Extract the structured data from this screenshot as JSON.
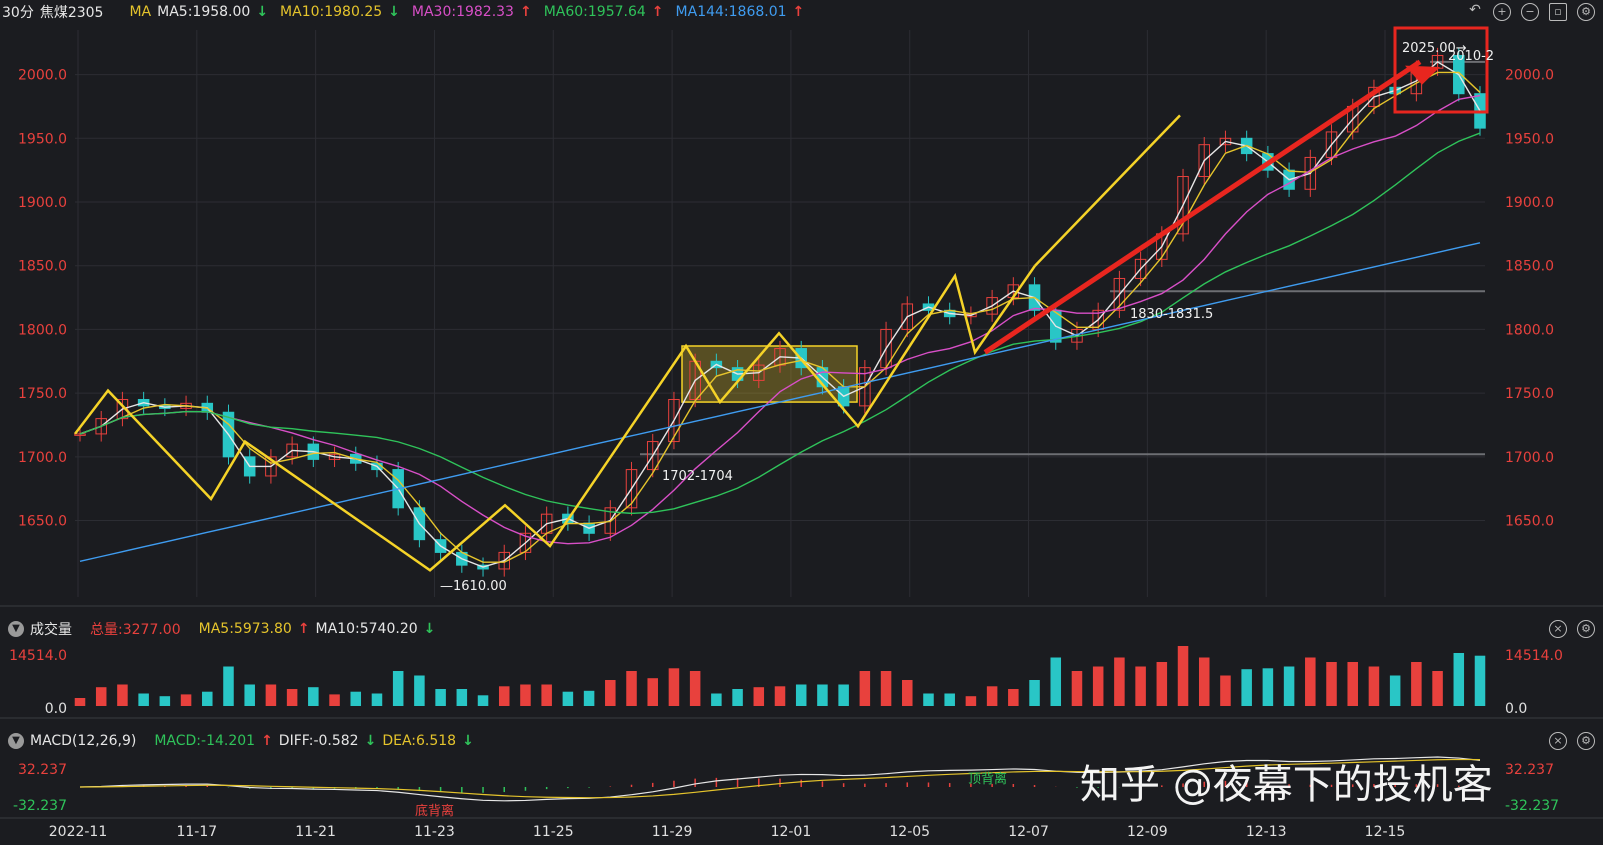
{
  "header": {
    "period": "30分",
    "symbol": "焦煤2305",
    "ma_label": "MA",
    "ma5": "MA5:1958.00",
    "ma10": "MA10:1980.25",
    "ma30": "MA30:1982.33",
    "ma60": "MA60:1957.64",
    "ma144": "MA144:1868.01"
  },
  "volume_panel": {
    "title": "成交量",
    "total": "总量:3277.00",
    "ma5": "MA5:5973.80",
    "ma10": "MA10:5740.20",
    "axis_top": "14514.0",
    "axis_bottom": "0.0"
  },
  "macd_panel": {
    "title": "MACD(12,26,9)",
    "macd": "MACD:-14.201",
    "diff": "DIFF:-0.582",
    "dea": "DEA:6.518",
    "axis_top": "32.237",
    "axis_bottom": "-32.237",
    "label_bottom_divergence": "底背离",
    "label_top_divergence": "顶背离"
  },
  "watermark": "知乎 @夜幕下的投机客",
  "colors": {
    "up": "#e8413d",
    "down": "#29c6c6",
    "ma5": "#e6e6e6",
    "ma10": "#e5c42c",
    "ma30": "#d84fc7",
    "ma60": "#2fc35a",
    "ma144": "#3f9cf0",
    "annotation": "#f5d328",
    "arrow": "#e8261f"
  },
  "chart_data": {
    "type": "candlestick",
    "instrument": "焦煤2305",
    "interval": "30分",
    "y_ticks": [
      "1650.0",
      "1700.0",
      "1750.0",
      "1800.0",
      "1850.0",
      "1900.0",
      "1950.0",
      "2000.0"
    ],
    "ylim": [
      1590,
      2035
    ],
    "x_ticks": [
      "2022-11",
      "11-17",
      "11-21",
      "11-23",
      "11-25",
      "11-29",
      "12-01",
      "12-05",
      "12-07",
      "12-09",
      "12-13",
      "12-15"
    ],
    "annotations": [
      {
        "text": "2025.00→",
        "value": 2025.0
      },
      {
        "text": "2010-2",
        "value": 2010.0
      },
      {
        "text": "1830-1831.5",
        "value": 1830.0
      },
      {
        "text": "1702-1704",
        "value": 1702.0
      },
      {
        "text": "—1610.00",
        "value": 1610.0
      }
    ],
    "support_lines": [
      2010,
      1830,
      1702
    ],
    "zigzag_pattern": [
      1718,
      1752,
      1667,
      1712,
      1611,
      1662,
      1630,
      1787,
      1743,
      1797,
      1724,
      1842,
      1782,
      1850
    ],
    "zigzag_extension_end": 1968,
    "trend_arrow": {
      "from": 1782,
      "to": 2010
    },
    "consolidation_box": {
      "from": 1743,
      "to": 1787
    },
    "close_approx": [
      1718,
      1730,
      1745,
      1740,
      1738,
      1742,
      1735,
      1700,
      1685,
      1700,
      1710,
      1698,
      1702,
      1695,
      1690,
      1660,
      1635,
      1625,
      1615,
      1612,
      1625,
      1640,
      1655,
      1648,
      1640,
      1660,
      1690,
      1712,
      1745,
      1775,
      1770,
      1760,
      1772,
      1785,
      1770,
      1755,
      1740,
      1770,
      1800,
      1820,
      1815,
      1810,
      1812,
      1825,
      1835,
      1815,
      1790,
      1800,
      1815,
      1840,
      1855,
      1875,
      1920,
      1945,
      1950,
      1938,
      1925,
      1910,
      1935,
      1955,
      1975,
      1990,
      1985,
      2005,
      2015,
      1985,
      1958
    ]
  }
}
